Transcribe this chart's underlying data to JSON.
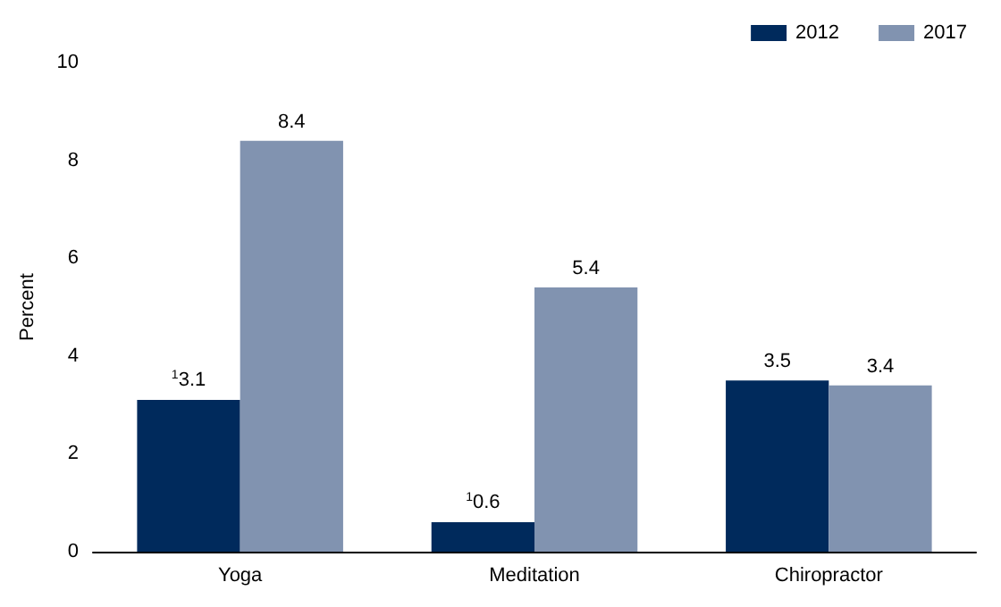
{
  "chart_data": {
    "type": "bar",
    "ylabel": "Percent",
    "categories": [
      "Yoga",
      "Meditation",
      "Chiropractor"
    ],
    "series": [
      {
        "name": "2012",
        "color": "#002a5c",
        "values": [
          3.1,
          0.6,
          3.5
        ],
        "value_labels": [
          "$^{1}$3.1",
          "$^{1}$0.6",
          "3.5"
        ]
      },
      {
        "name": "2017",
        "color": "#8193b0",
        "values": [
          8.4,
          5.4,
          3.4
        ],
        "value_labels": [
          "8.4",
          "5.4",
          "3.4"
        ]
      }
    ],
    "ylim": [
      0,
      10
    ],
    "yticks": [
      0,
      2,
      4,
      6,
      8,
      10
    ],
    "grid": false,
    "legend": "top right"
  }
}
